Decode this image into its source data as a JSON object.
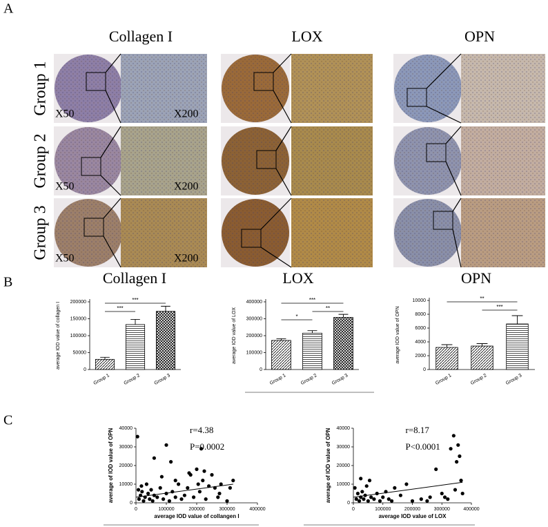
{
  "figure": {
    "panel_labels": [
      "A",
      "B",
      "C"
    ],
    "panel_a": {
      "columns": [
        "Collagen I",
        "LOX",
        "OPN"
      ],
      "rows": [
        "Group 1",
        "Group 2",
        "Group 3"
      ],
      "magnification_labels": [
        "X50",
        "X200"
      ]
    }
  },
  "chart_data": [
    {
      "type": "bar",
      "title": "Collagen I",
      "y_label": "average IOD value of collagen I",
      "categories": [
        "Group 1",
        "Group 2",
        "Group 3"
      ],
      "values": [
        30000,
        133000,
        172000
      ],
      "errors": [
        6000,
        15000,
        15000
      ],
      "bar_patterns": [
        "diagonal",
        "horizontal",
        "crosshatch"
      ],
      "ylim": [
        0,
        200000
      ],
      "yticks": [
        0,
        50000,
        100000,
        150000,
        200000
      ],
      "comparisons": [
        {
          "groups": [
            "Group 1",
            "Group 2"
          ],
          "label": "***"
        },
        {
          "groups": [
            "Group 1",
            "Group 3"
          ],
          "label": "***"
        }
      ]
    },
    {
      "type": "bar",
      "title": "LOX",
      "y_label": "average IOD value of LOX",
      "categories": [
        "Group 1",
        "Group 2",
        "Group 3"
      ],
      "values": [
        172000,
        215000,
        308000
      ],
      "errors": [
        10000,
        15000,
        18000
      ],
      "bar_patterns": [
        "diagonal",
        "horizontal",
        "crosshatch"
      ],
      "ylim": [
        0,
        400000
      ],
      "yticks": [
        0,
        100000,
        200000,
        300000,
        400000
      ],
      "comparisons": [
        {
          "groups": [
            "Group 1",
            "Group 2"
          ],
          "label": "*"
        },
        {
          "groups": [
            "Group 2",
            "Group 3"
          ],
          "label": "**"
        },
        {
          "groups": [
            "Group 1",
            "Group 3"
          ],
          "label": "***"
        }
      ]
    },
    {
      "type": "bar",
      "title": "OPN",
      "y_label": "average IOD value of OPN",
      "categories": [
        "Group 1",
        "Group 2",
        "Group 3"
      ],
      "values": [
        3200,
        3400,
        6600
      ],
      "errors": [
        400,
        350,
        1200
      ],
      "bar_patterns": [
        "diagonal",
        "diagonal",
        "horizontal"
      ],
      "ylim": [
        0,
        10000
      ],
      "yticks": [
        0,
        2000,
        4000,
        6000,
        8000,
        10000
      ],
      "comparisons": [
        {
          "groups": [
            "Group 2",
            "Group 3"
          ],
          "label": "***"
        },
        {
          "groups": [
            "Group 1",
            "Group 3"
          ],
          "label": "**"
        }
      ]
    },
    {
      "type": "scatter",
      "x_label": "average IOD value of collangen I",
      "y_label": "average of IOD value of OPN",
      "annotations": [
        "r=4.38",
        "P=0.0002"
      ],
      "color": "#000000",
      "x": [
        5000,
        60000,
        100000,
        115000,
        10000,
        15000,
        20000,
        25000,
        30000,
        40000,
        45000,
        50000,
        55000,
        60000,
        70000,
        80000,
        90000,
        100000,
        110000,
        120000,
        130000,
        140000,
        150000,
        160000,
        170000,
        180000,
        190000,
        200000,
        205000,
        210000,
        215000,
        220000,
        230000,
        240000,
        250000,
        260000,
        270000,
        280000,
        300000,
        310000,
        320000,
        35000,
        85000,
        130000,
        175000,
        225000,
        275000,
        8000,
        18000
      ],
      "y": [
        35500,
        24000,
        31000,
        22000,
        2000,
        4000,
        6000,
        1000,
        3000,
        5000,
        2000,
        7000,
        1000,
        4000,
        3000,
        8000,
        2000,
        5000,
        1000,
        6000,
        3000,
        10000,
        2000,
        4000,
        8000,
        15000,
        3000,
        18000,
        10000,
        6000,
        29000,
        12000,
        2000,
        9000,
        15000,
        8000,
        3000,
        10000,
        1000,
        8000,
        12000,
        10000,
        14000,
        12000,
        16000,
        17000,
        5000,
        7000,
        9000
      ],
      "trend_line": {
        "x": [
          0,
          320000
        ],
        "y": [
          3000,
          10000
        ]
      },
      "xlim": [
        0,
        400000
      ],
      "xticks": [
        0,
        100000,
        200000,
        300000,
        400000
      ],
      "ylim": [
        0,
        40000
      ],
      "yticks": [
        0,
        10000,
        20000,
        30000,
        40000
      ]
    },
    {
      "type": "scatter",
      "x_label": "average IOD value of LOX",
      "y_label": "average of IOD value of OPN",
      "annotations": [
        "r=8.17",
        "P<0.0001"
      ],
      "color": "#000000",
      "x": [
        5000,
        10000,
        15000,
        20000,
        25000,
        30000,
        35000,
        40000,
        50000,
        60000,
        70000,
        80000,
        90000,
        100000,
        110000,
        120000,
        140000,
        160000,
        180000,
        200000,
        230000,
        260000,
        280000,
        300000,
        310000,
        330000,
        340000,
        350000,
        355000,
        360000,
        345000,
        370000,
        365000,
        320000,
        250000,
        130000,
        45000,
        55000,
        25000
      ],
      "y": [
        8000,
        2000,
        5000,
        1000,
        3000,
        6000,
        2000,
        4000,
        1000,
        3000,
        2000,
        5000,
        1000,
        3000,
        6000,
        2000,
        8000,
        4000,
        10000,
        1000,
        2000,
        3000,
        18000,
        5000,
        3000,
        29000,
        36000,
        22000,
        31000,
        25000,
        7000,
        5000,
        12000,
        2000,
        1000,
        1000,
        9000,
        12000,
        13000
      ],
      "trend_line": {
        "x": [
          0,
          370000
        ],
        "y": [
          3000,
          11000
        ]
      },
      "xlim": [
        0,
        400000
      ],
      "xticks": [
        0,
        100000,
        200000,
        300000,
        400000
      ],
      "ylim": [
        0,
        40000
      ],
      "yticks": [
        0,
        10000,
        20000,
        30000,
        40000
      ]
    }
  ]
}
